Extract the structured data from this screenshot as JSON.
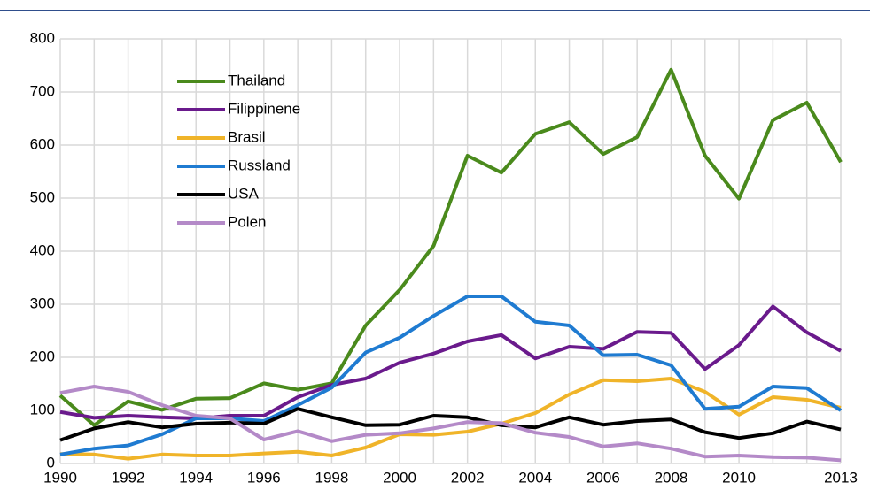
{
  "chart_data": {
    "type": "line",
    "x": [
      1990,
      1991,
      1992,
      1993,
      1994,
      1995,
      1996,
      1997,
      1998,
      1999,
      2000,
      2001,
      2002,
      2003,
      2004,
      2005,
      2006,
      2007,
      2008,
      2009,
      2010,
      2011,
      2012,
      2013
    ],
    "xlim": [
      1990,
      2013
    ],
    "xticks": [
      1990,
      1992,
      1994,
      1996,
      1998,
      2000,
      2002,
      2004,
      2006,
      2008,
      2010,
      2013
    ],
    "ylim": [
      0,
      800
    ],
    "yticks": [
      0,
      100,
      200,
      300,
      400,
      500,
      600,
      700,
      800
    ],
    "grid": true,
    "legend": "upper left",
    "series": [
      {
        "name": "Thailand",
        "color": "#4a8a1c",
        "values": [
          128,
          72,
          117,
          101,
          122,
          123,
          151,
          139,
          151,
          260,
          327,
          410,
          580,
          548,
          621,
          643,
          583,
          615,
          742,
          580,
          499,
          647,
          680,
          568
        ]
      },
      {
        "name": "Filippinene",
        "color": "#6a1a8c",
        "values": [
          97,
          86,
          90,
          87,
          85,
          90,
          90,
          125,
          148,
          160,
          190,
          207,
          230,
          242,
          198,
          220,
          216,
          248,
          246,
          178,
          223,
          296,
          247,
          212
        ]
      },
      {
        "name": "Brasil",
        "color": "#f0b429",
        "values": [
          18,
          17,
          9,
          17,
          15,
          15,
          19,
          22,
          15,
          30,
          55,
          54,
          60,
          75,
          95,
          130,
          157,
          155,
          160,
          135,
          92,
          125,
          120,
          105
        ]
      },
      {
        "name": "Russland",
        "color": "#1f7bd1",
        "values": [
          17,
          28,
          34,
          55,
          85,
          85,
          80,
          110,
          143,
          209,
          237,
          278,
          315,
          315,
          267,
          260,
          204,
          205,
          185,
          103,
          107,
          145,
          142,
          100
        ]
      },
      {
        "name": "USA",
        "color": "#000000",
        "values": [
          44,
          66,
          78,
          68,
          75,
          77,
          75,
          103,
          87,
          72,
          73,
          90,
          87,
          72,
          68,
          87,
          73,
          80,
          83,
          59,
          48,
          57,
          79,
          64
        ]
      },
      {
        "name": "Polen",
        "color": "#b48ac8",
        "values": [
          133,
          145,
          135,
          110,
          90,
          85,
          45,
          61,
          42,
          54,
          57,
          66,
          78,
          76,
          58,
          50,
          32,
          38,
          28,
          13,
          15,
          12,
          11,
          6
        ]
      }
    ]
  }
}
